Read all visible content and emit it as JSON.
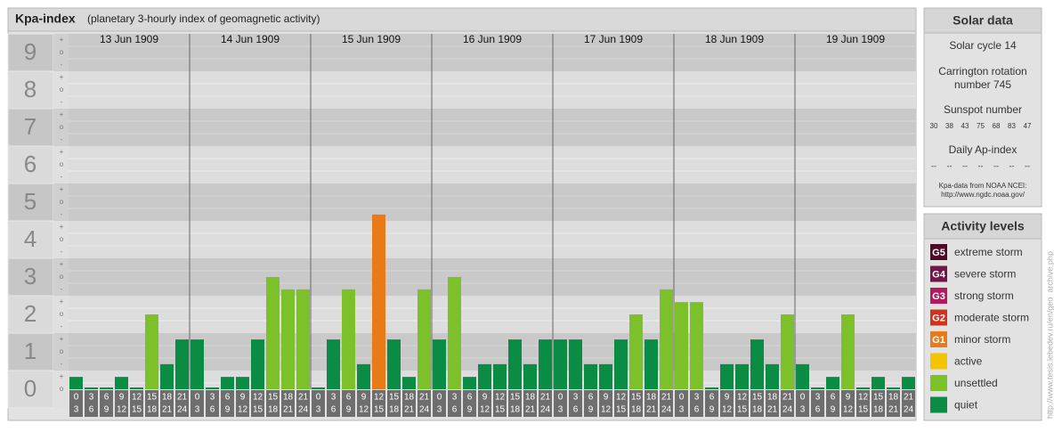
{
  "chart_data": {
    "type": "bar",
    "title": "Kpa-index",
    "subtitle": "(planetary 3-hourly index of geomagnetic activity)",
    "ylim": [
      0,
      9.5
    ],
    "yticks": [
      0,
      1,
      2,
      3,
      4,
      5,
      6,
      7,
      8,
      9
    ],
    "minor_labels": [
      "-",
      "o",
      "+"
    ],
    "hours": [
      [
        0,
        3
      ],
      [
        3,
        6
      ],
      [
        6,
        9
      ],
      [
        9,
        12
      ],
      [
        12,
        15
      ],
      [
        15,
        18
      ],
      [
        18,
        21
      ],
      [
        21,
        24
      ]
    ],
    "days": [
      {
        "date": "13 Jun 1909",
        "values": [
          0.33,
          0,
          0,
          0.33,
          0,
          2,
          0.67,
          1.33
        ],
        "colors": [
          "#0a8c45",
          "#0a8c45",
          "#0a8c45",
          "#0a8c45",
          "#0a8c45",
          "#7cc02a",
          "#0a8c45",
          "#0a8c45"
        ]
      },
      {
        "date": "14 Jun 1909",
        "values": [
          1.33,
          0,
          0.33,
          0.33,
          1.33,
          3,
          2.67,
          2.67
        ],
        "colors": [
          "#0a8c45",
          "#0a8c45",
          "#0a8c45",
          "#0a8c45",
          "#0a8c45",
          "#7cc02a",
          "#7cc02a",
          "#7cc02a"
        ]
      },
      {
        "date": "15 Jun 1909",
        "values": [
          0,
          1.33,
          2.67,
          0.67,
          4.67,
          1.33,
          0.33,
          2.67
        ],
        "colors": [
          "#0a8c45",
          "#0a8c45",
          "#7cc02a",
          "#0a8c45",
          "#e87a1a",
          "#0a8c45",
          "#0a8c45",
          "#7cc02a"
        ]
      },
      {
        "date": "16 Jun 1909",
        "values": [
          1.33,
          3,
          0.33,
          0.67,
          0.67,
          1.33,
          0.67,
          1.33
        ],
        "colors": [
          "#0a8c45",
          "#7cc02a",
          "#0a8c45",
          "#0a8c45",
          "#0a8c45",
          "#0a8c45",
          "#0a8c45",
          "#0a8c45"
        ]
      },
      {
        "date": "17 Jun 1909",
        "values": [
          1.33,
          1.33,
          0.67,
          0.67,
          1.33,
          2,
          1.33,
          2.67
        ],
        "colors": [
          "#0a8c45",
          "#0a8c45",
          "#0a8c45",
          "#0a8c45",
          "#0a8c45",
          "#7cc02a",
          "#0a8c45",
          "#7cc02a"
        ]
      },
      {
        "date": "18 Jun 1909",
        "values": [
          2.33,
          2.33,
          0,
          0.67,
          0.67,
          1.33,
          0.67,
          2
        ],
        "colors": [
          "#7cc02a",
          "#7cc02a",
          "#0a8c45",
          "#0a8c45",
          "#0a8c45",
          "#0a8c45",
          "#0a8c45",
          "#7cc02a"
        ]
      },
      {
        "date": "19 Jun 1909",
        "values": [
          0.67,
          0,
          0.33,
          2,
          0,
          0.33,
          0,
          0.33
        ],
        "colors": [
          "#0a8c45",
          "#0a8c45",
          "#0a8c45",
          "#7cc02a",
          "#0a8c45",
          "#0a8c45",
          "#0a8c45",
          "#0a8c45"
        ]
      }
    ]
  },
  "solar_data": {
    "title": "Solar data",
    "cycle": "Solar cycle 14",
    "carrington": [
      "Carrington rotation",
      "number 745"
    ],
    "sunspot_title": "Sunspot number",
    "sunspots": [
      30,
      38,
      43,
      75,
      68,
      83,
      47
    ],
    "ap_title": "Daily Ap-index",
    "ap": [
      "--",
      "--",
      "--",
      "--",
      "--",
      "--",
      "--"
    ],
    "source": [
      "Kpa-data from NOAA NCEI:",
      "http://www.ngdc.noaa.gov/"
    ]
  },
  "activity_levels": {
    "title": "Activity levels",
    "items": [
      {
        "badge": "G5",
        "name": "extreme storm",
        "color": "#4e0a28"
      },
      {
        "badge": "G4",
        "name": "severe storm",
        "color": "#74154a"
      },
      {
        "badge": "G3",
        "name": "strong storm",
        "color": "#b3195c"
      },
      {
        "badge": "G2",
        "name": "moderate storm",
        "color": "#d1321e"
      },
      {
        "badge": "G1",
        "name": "minor storm",
        "color": "#e87a1a"
      },
      {
        "badge": "",
        "name": "active",
        "color": "#f5c400"
      },
      {
        "badge": "",
        "name": "unsettled",
        "color": "#7cc02a"
      },
      {
        "badge": "",
        "name": "quiet",
        "color": "#0a8c45"
      }
    ]
  },
  "watermark": "http://www.tesis.lebedev.ru/en/geo_archive.php"
}
